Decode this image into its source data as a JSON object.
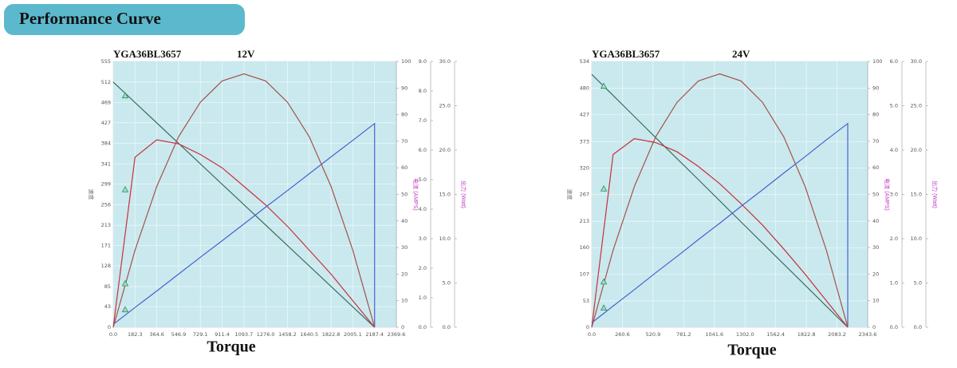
{
  "header": {
    "title": "Performance Curve"
  },
  "chart_data": [
    {
      "type": "line",
      "model": "YGA36BL3657",
      "voltage": "12V",
      "x_label": "Torque",
      "y_label": "速度",
      "y3_label": "电流 (AMPS)",
      "y4_label": "出力 (Watt)",
      "grid": true,
      "background": "#c9e9ee",
      "xlim": [
        0,
        2369.6
      ],
      "xticks": [
        {
          "value": 0,
          "label": "0.0"
        },
        182.3,
        364.6,
        546.9,
        729.1,
        911.4,
        1093.7,
        {
          "value": 1276,
          "label": "1276.0"
        },
        1458.2,
        1640.5,
        1822.8,
        2005.1,
        2187.4,
        2369.6
      ],
      "ylim": [
        0,
        555
      ],
      "yticks": [
        0,
        43,
        85,
        128,
        171,
        213,
        256,
        299,
        341,
        384,
        427,
        469,
        512,
        555
      ],
      "y2lim": [
        0,
        100
      ],
      "y2ticks": [
        0,
        10,
        20,
        30,
        40,
        50,
        60,
        70,
        80,
        90,
        100
      ],
      "y3lim": [
        0,
        9
      ],
      "y3ticks": [
        {
          "value": 0,
          "label": "0.0"
        },
        {
          "value": 1,
          "label": "1.0"
        },
        {
          "value": 2,
          "label": "2.0"
        },
        {
          "value": 3,
          "label": "3.0"
        },
        {
          "value": 4,
          "label": "4.0"
        },
        {
          "value": 5,
          "label": "5.0"
        },
        {
          "value": 6,
          "label": "6.0"
        },
        {
          "value": 7,
          "label": "7.0"
        },
        {
          "value": 8,
          "label": "8.0"
        },
        {
          "value": 9,
          "label": "9.0"
        }
      ],
      "y4lim": [
        0,
        30
      ],
      "y4ticks": [
        {
          "value": 0,
          "label": "0.0"
        },
        {
          "value": 5,
          "label": "5.0"
        },
        {
          "value": 10,
          "label": "10.0"
        },
        {
          "value": 15,
          "label": "15.0"
        },
        {
          "value": 20,
          "label": "20.0"
        },
        {
          "value": 25,
          "label": "25.0"
        },
        {
          "value": 30,
          "label": "30.0"
        }
      ],
      "series": [
        {
          "color": "#3b6e5e",
          "axis": "y",
          "x": [
            0,
            182.3,
            364.6,
            546.9,
            729.1,
            911.4,
            1093.7,
            1276,
            1458.2,
            1640.5,
            1822.8,
            2005.1,
            2187.4
          ],
          "values": [
            512,
            469.3,
            426.7,
            384,
            341.3,
            298.7,
            256,
            213.3,
            170.7,
            128,
            85.3,
            42.7,
            0
          ],
          "marker": {
            "x": 100,
            "value": 483
          }
        },
        {
          "color": "#c8303c",
          "axis": "y2",
          "x": [
            0,
            182.3,
            364.6,
            546.9,
            729.1,
            911.4,
            1093.7,
            1276,
            1458.2,
            1640.5,
            1822.8,
            2005.1,
            2187.4
          ],
          "values": [
            0,
            64,
            70.5,
            69,
            65,
            60,
            53,
            46,
            38,
            29,
            20,
            10,
            0
          ],
          "marker": {
            "x": 100,
            "value": 51.7
          }
        },
        {
          "color": "#4a5fd0",
          "axis": "y3",
          "x": [
            0,
            182.3,
            364.6,
            546.9,
            729.1,
            911.4,
            1093.7,
            1276,
            1458.2,
            1640.5,
            1822.8,
            2005.1,
            2187.4,
            2187.4
          ],
          "values": [
            0.1,
            0.67,
            1.23,
            1.8,
            2.37,
            2.93,
            3.5,
            4.07,
            4.63,
            5.2,
            5.77,
            6.33,
            6.9,
            0
          ],
          "marker": {
            "x": 100,
            "value": 0.59
          }
        },
        {
          "color": "#a4524c",
          "axis": "y4",
          "x": [
            0,
            182.3,
            364.6,
            546.9,
            729.1,
            911.4,
            1093.7,
            1276,
            1458.2,
            1640.5,
            1822.8,
            2005.1,
            2187.4
          ],
          "values": [
            0,
            8.7,
            15.9,
            21.5,
            25.4,
            27.8,
            28.6,
            27.8,
            25.4,
            21.5,
            15.9,
            8.7,
            0
          ],
          "marker": {
            "x": 100,
            "value": 4.9
          }
        }
      ]
    },
    {
      "type": "line",
      "model": "YGA36BL3657",
      "voltage": "24V",
      "x_label": "Torque",
      "y_label": "速度",
      "y3_label": "电流 (AMPS)",
      "y4_label": "出力 (Watt)",
      "grid": true,
      "background": "#c9e9ee",
      "xlim": [
        0,
        2343.6
      ],
      "xticks": [
        {
          "value": 0,
          "label": "0.0"
        },
        260.6,
        520.9,
        781.2,
        1041.6,
        {
          "value": 1302,
          "label": "1302.0"
        },
        1562.4,
        1822.8,
        2083.2,
        2343.6
      ],
      "ylim": [
        0,
        534
      ],
      "yticks": [
        0,
        53,
        107,
        160,
        213,
        267,
        320,
        373,
        427,
        480,
        534
      ],
      "y2lim": [
        0,
        100
      ],
      "y2ticks": [
        0,
        10,
        20,
        30,
        40,
        50,
        60,
        70,
        80,
        90,
        100
      ],
      "y3lim": [
        0,
        6
      ],
      "y3ticks": [
        {
          "value": 0,
          "label": "0.0"
        },
        {
          "value": 1,
          "label": "1.0"
        },
        {
          "value": 2,
          "label": "2.0"
        },
        {
          "value": 3,
          "label": "3.0"
        },
        {
          "value": 4,
          "label": "4.0"
        },
        {
          "value": 5,
          "label": "5.0"
        },
        {
          "value": 6,
          "label": "6.0"
        }
      ],
      "y4lim": [
        0,
        30
      ],
      "y4ticks": [
        {
          "value": 0,
          "label": "0.0"
        },
        {
          "value": 5,
          "label": "5.0"
        },
        {
          "value": 10,
          "label": "10.0"
        },
        {
          "value": 15,
          "label": "15.0"
        },
        {
          "value": 20,
          "label": "20.0"
        },
        {
          "value": 25,
          "label": "25.0"
        },
        {
          "value": 30,
          "label": "30.0"
        }
      ],
      "series": [
        {
          "color": "#3b6e5e",
          "axis": "y",
          "x": [
            0,
            181.2,
            362.3,
            543.5,
            724.7,
            905.8,
            1087,
            1268.2,
            1449.3,
            1630.5,
            1811.7,
            1992.8,
            2174
          ],
          "values": [
            508,
            465.7,
            423.3,
            381,
            338.7,
            296.7,
            254,
            211.7,
            169.3,
            127,
            84.7,
            42.3,
            0
          ],
          "marker": {
            "x": 102,
            "value": 484
          }
        },
        {
          "color": "#c8303c",
          "axis": "y2",
          "x": [
            0,
            181.2,
            362.3,
            543.5,
            724.7,
            905.8,
            1087,
            1268.2,
            1449.3,
            1630.5,
            1811.7,
            1992.8,
            2174
          ],
          "values": [
            0,
            65,
            71,
            69.5,
            66,
            60.5,
            54,
            46.5,
            38.5,
            29.5,
            20,
            10,
            0
          ],
          "marker": {
            "x": 102,
            "value": 52
          }
        },
        {
          "color": "#4a5fd0",
          "axis": "y3",
          "x": [
            0,
            181.2,
            362.3,
            543.5,
            724.7,
            905.8,
            1087,
            1268.2,
            1449.3,
            1630.5,
            1811.7,
            1992.8,
            2174,
            2174
          ],
          "values": [
            0.1,
            0.48,
            0.85,
            1.23,
            1.6,
            1.98,
            2.35,
            2.73,
            3.1,
            3.48,
            3.85,
            4.23,
            4.6,
            0
          ],
          "marker": {
            "x": 102,
            "value": 0.43
          }
        },
        {
          "color": "#a4524c",
          "axis": "y4",
          "x": [
            0,
            181.2,
            362.3,
            543.5,
            724.7,
            905.8,
            1087,
            1268.2,
            1449.3,
            1630.5,
            1811.7,
            1992.8,
            2174
          ],
          "values": [
            0,
            8.7,
            15.9,
            21.5,
            25.4,
            27.8,
            28.6,
            27.8,
            25.4,
            21.5,
            15.9,
            8.7,
            0
          ],
          "marker": {
            "x": 102,
            "value": 5.1
          }
        }
      ]
    }
  ]
}
